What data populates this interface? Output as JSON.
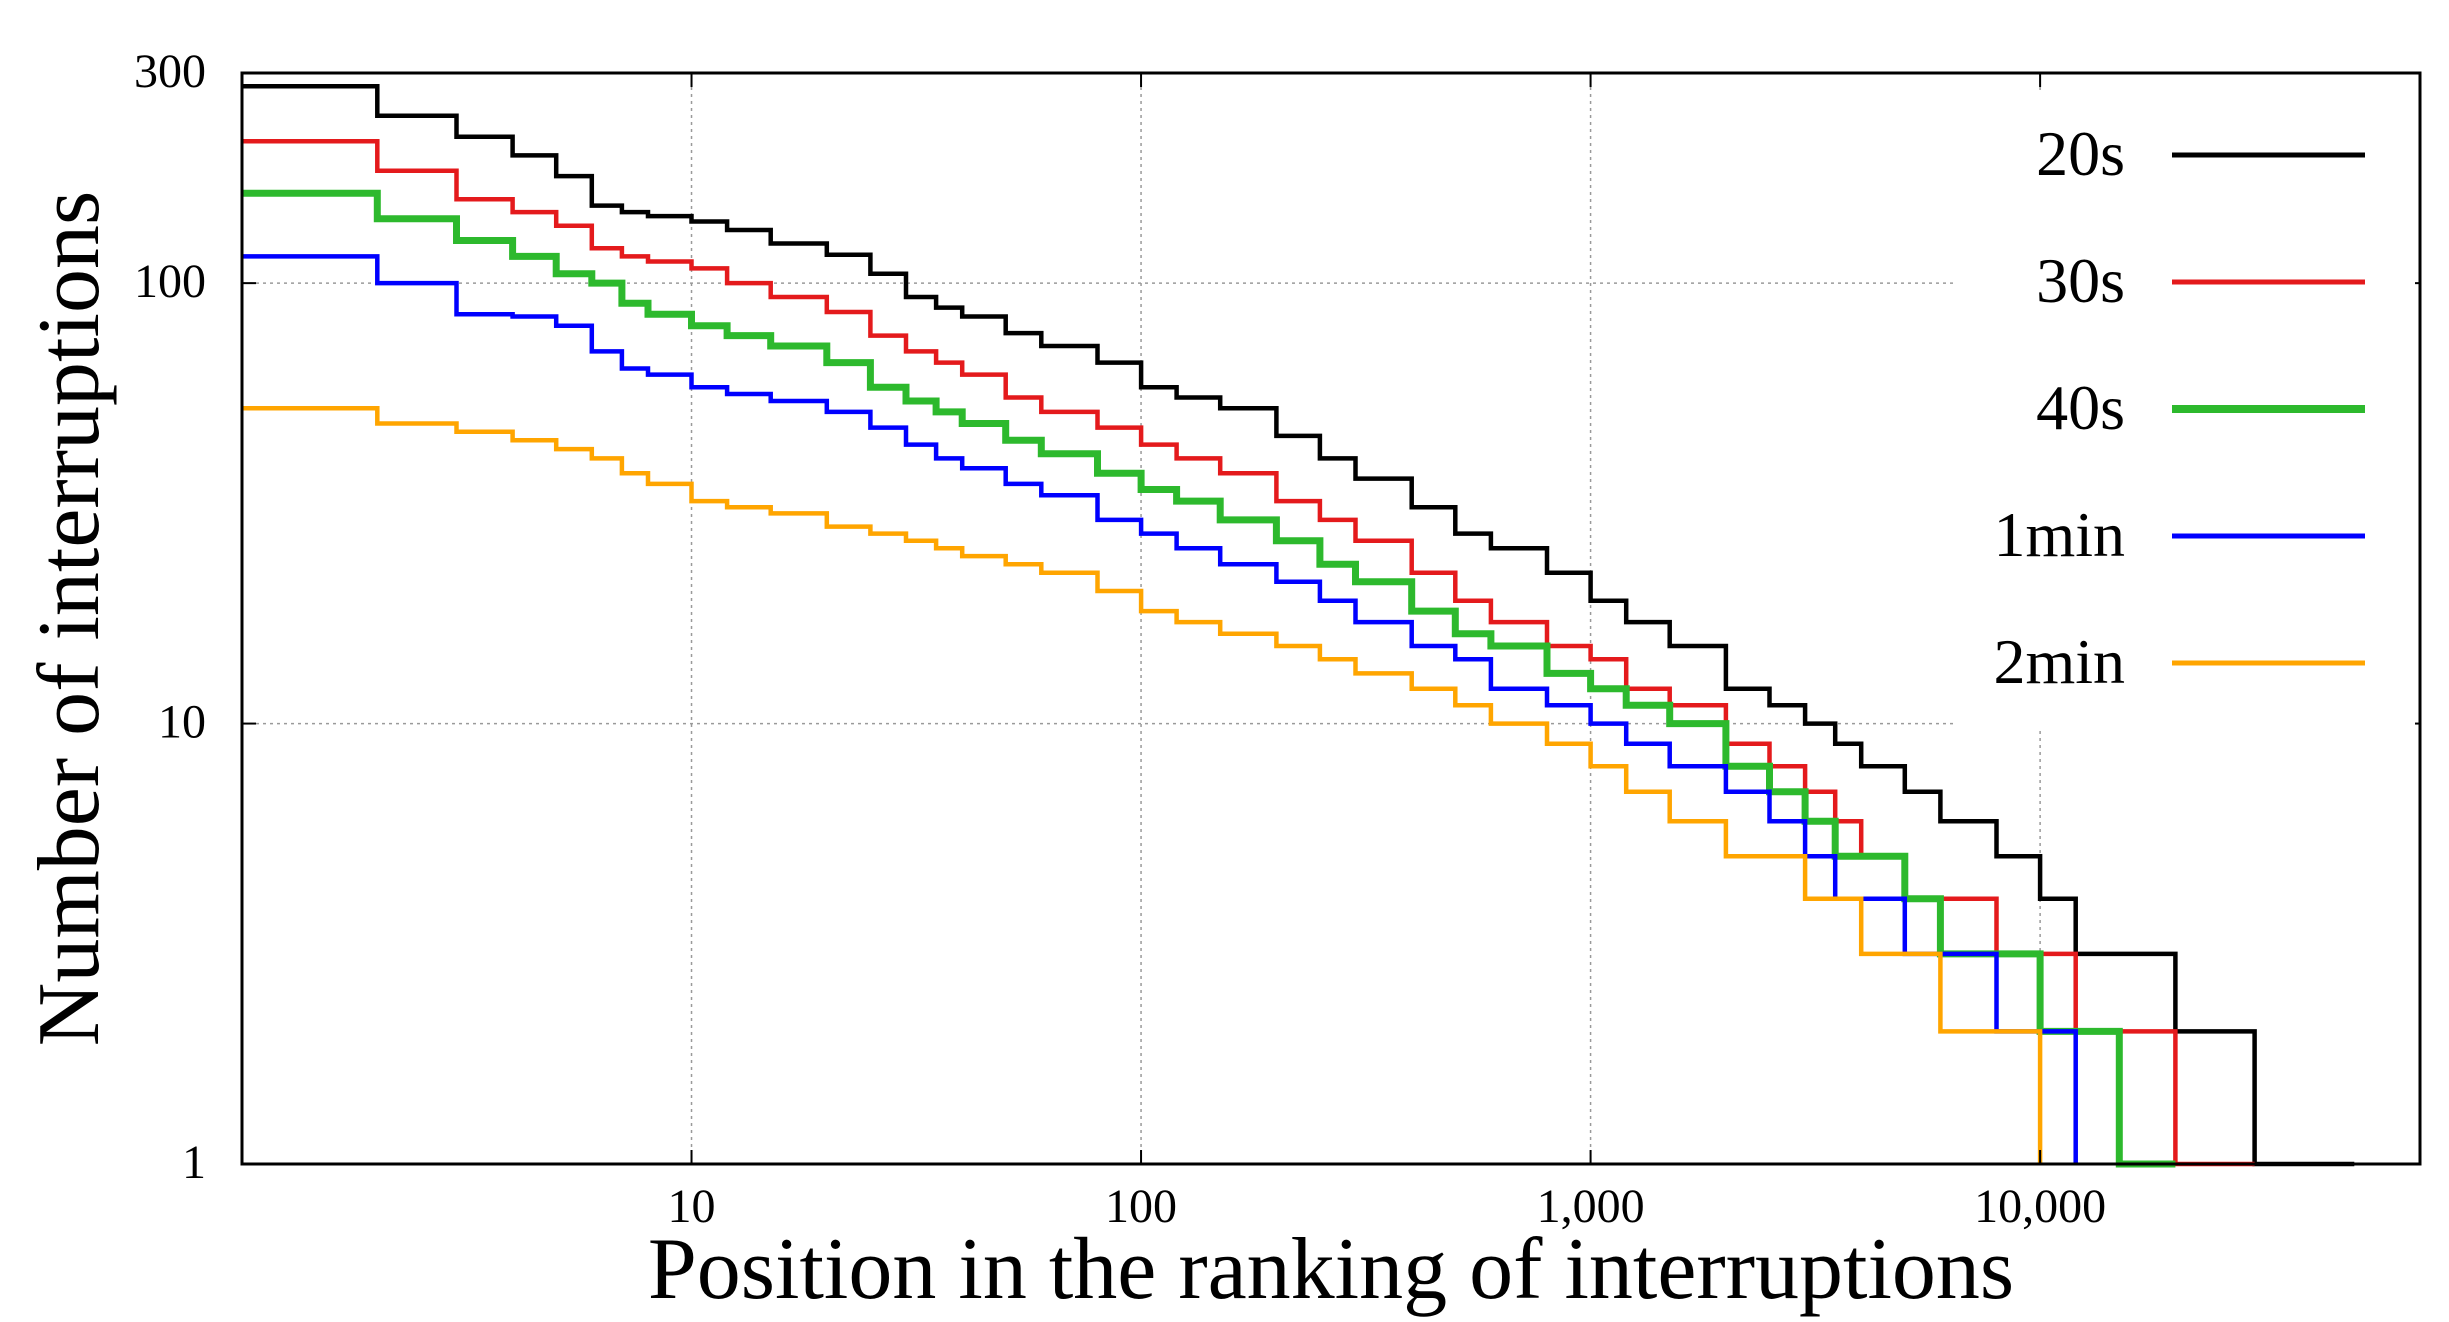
{
  "chart_data": {
    "type": "line",
    "title": "",
    "xlabel": "Position in the ranking of interruptions",
    "ylabel": "Number of interruptions",
    "xscale": "log",
    "yscale": "log",
    "xlim": [
      1,
      70000
    ],
    "ylim": [
      1,
      300
    ],
    "xticks": [
      {
        "value": 10,
        "label": "10"
      },
      {
        "value": 100,
        "label": "100"
      },
      {
        "value": 1000,
        "label": "1,000"
      },
      {
        "value": 10000,
        "label": "10,000"
      }
    ],
    "yticks": [
      {
        "value": 1,
        "label": "1"
      },
      {
        "value": 10,
        "label": "10"
      },
      {
        "value": 100,
        "label": "100"
      },
      {
        "value": 300,
        "label": "300"
      }
    ],
    "grid": true,
    "legend_position": "top-right",
    "series": [
      {
        "name": "20s",
        "color": "#000000",
        "x": [
          1,
          2,
          3,
          4,
          5,
          6,
          7,
          8,
          10,
          12,
          15,
          20,
          25,
          30,
          35,
          40,
          50,
          60,
          80,
          100,
          120,
          150,
          200,
          250,
          300,
          400,
          500,
          600,
          800,
          1000,
          1200,
          1500,
          2000,
          2500,
          3000,
          3500,
          4000,
          5000,
          6000,
          8000,
          10000,
          12000,
          15000,
          20000,
          25000,
          30000,
          40000,
          50000
        ],
        "y": [
          280,
          240,
          215,
          195,
          175,
          150,
          145,
          142,
          138,
          132,
          123,
          116,
          105,
          93,
          88,
          84,
          77,
          72,
          66,
          58,
          55,
          52,
          45,
          40,
          36,
          31,
          27,
          25,
          22,
          19,
          17,
          15,
          12,
          11,
          10,
          9,
          8,
          7,
          6,
          5,
          4,
          3,
          3,
          2,
          2,
          1,
          1,
          1
        ]
      },
      {
        "name": "30s",
        "color": "#e41a1c",
        "x": [
          1,
          2,
          3,
          4,
          5,
          6,
          7,
          8,
          10,
          12,
          15,
          20,
          25,
          30,
          35,
          40,
          50,
          60,
          80,
          100,
          120,
          150,
          200,
          250,
          300,
          400,
          500,
          600,
          800,
          1000,
          1200,
          1500,
          2000,
          2500,
          3000,
          3500,
          4000,
          5000,
          6000,
          8000,
          10000,
          12000,
          15000,
          20000,
          25000,
          30000
        ],
        "y": [
          210,
          180,
          155,
          145,
          135,
          120,
          115,
          112,
          108,
          100,
          93,
          86,
          76,
          70,
          66,
          62,
          55,
          51,
          47,
          43,
          40,
          37,
          32,
          29,
          26,
          22,
          19,
          17,
          15,
          14,
          12,
          11,
          9,
          8,
          7,
          6,
          5,
          4,
          4,
          3,
          3,
          2,
          2,
          1,
          1,
          1
        ]
      },
      {
        "name": "40s",
        "color": "#2db92d",
        "x": [
          1,
          2,
          3,
          4,
          5,
          6,
          7,
          8,
          10,
          12,
          15,
          20,
          25,
          30,
          35,
          40,
          50,
          60,
          80,
          100,
          120,
          150,
          200,
          250,
          300,
          400,
          500,
          600,
          800,
          1000,
          1200,
          1500,
          2000,
          2500,
          3000,
          3500,
          4000,
          5000,
          6000,
          8000,
          10000,
          12000,
          15000,
          20000
        ],
        "y": [
          160,
          140,
          125,
          115,
          105,
          100,
          90,
          85,
          80,
          76,
          72,
          66,
          58,
          54,
          51,
          48,
          44,
          41,
          37,
          34,
          32,
          29,
          26,
          23,
          21,
          18,
          16,
          15,
          13,
          12,
          11,
          10,
          8,
          7,
          6,
          5,
          5,
          4,
          3,
          3,
          2,
          2,
          1,
          1
        ]
      },
      {
        "name": "1min",
        "color": "#0000ff",
        "x": [
          1,
          2,
          3,
          4,
          5,
          6,
          7,
          8,
          10,
          12,
          15,
          20,
          25,
          30,
          35,
          40,
          50,
          60,
          80,
          100,
          120,
          150,
          200,
          250,
          300,
          400,
          500,
          600,
          800,
          1000,
          1200,
          1500,
          2000,
          2500,
          3000,
          3500,
          4000,
          5000,
          6000,
          8000,
          10000,
          12000
        ],
        "y": [
          115,
          100,
          85,
          84,
          80,
          70,
          64,
          62,
          58,
          56,
          54,
          51,
          47,
          43,
          40,
          38,
          35,
          33,
          29,
          27,
          25,
          23,
          21,
          19,
          17,
          15,
          14,
          12,
          11,
          10,
          9,
          8,
          7,
          6,
          5,
          4,
          4,
          3,
          3,
          2,
          2,
          1
        ]
      },
      {
        "name": "2min",
        "color": "#ffa500",
        "x": [
          1,
          2,
          3,
          4,
          5,
          6,
          7,
          8,
          10,
          12,
          15,
          20,
          25,
          30,
          35,
          40,
          50,
          60,
          80,
          100,
          120,
          150,
          200,
          250,
          300,
          400,
          500,
          600,
          800,
          1000,
          1200,
          1500,
          2000,
          2500,
          3000,
          3500,
          4000,
          5000,
          6000,
          8000,
          10000
        ],
        "y": [
          52,
          48,
          46,
          44,
          42,
          40,
          37,
          35,
          32,
          31,
          30,
          28,
          27,
          26,
          25,
          24,
          23,
          22,
          20,
          18,
          17,
          16,
          15,
          14,
          13,
          12,
          11,
          10,
          9,
          8,
          7,
          6,
          5,
          5,
          4,
          4,
          3,
          3,
          2,
          2,
          1
        ]
      }
    ]
  }
}
